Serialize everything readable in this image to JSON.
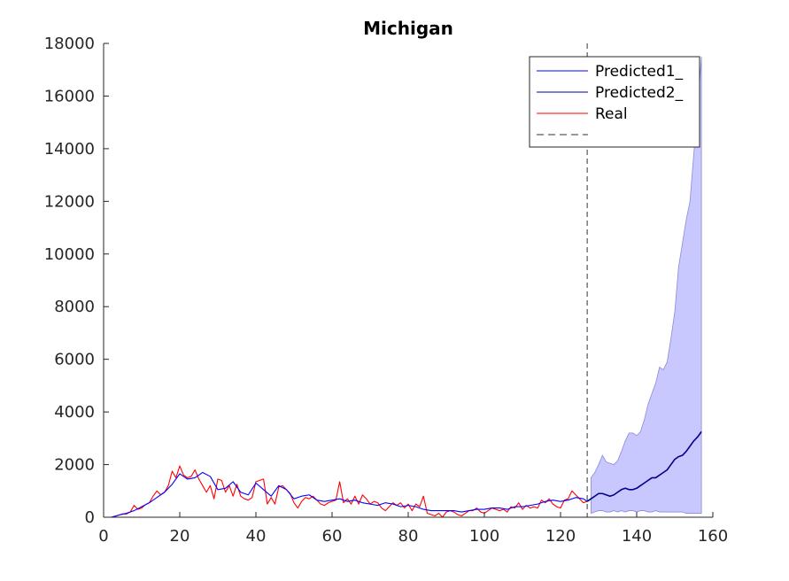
{
  "chart_data": {
    "type": "line",
    "title": "Michigan",
    "xlabel": "",
    "ylabel": "",
    "xlim": [
      0,
      160
    ],
    "ylim": [
      0,
      18000
    ],
    "xticks": [
      0,
      20,
      40,
      60,
      80,
      100,
      120,
      140,
      160
    ],
    "yticks": [
      0,
      2000,
      4000,
      6000,
      8000,
      10000,
      12000,
      14000,
      16000,
      18000
    ],
    "grid": false,
    "legend_position": "top-right",
    "legend": [
      "Predicted1_",
      "Predicted2_",
      "Real",
      ""
    ],
    "forecast_start_x": 127,
    "series": [
      {
        "name": "Real",
        "color": "#ff0000",
        "x": [
          2,
          3,
          4,
          5,
          6,
          7,
          8,
          9,
          10,
          11,
          12,
          13,
          14,
          15,
          16,
          17,
          18,
          19,
          20,
          21,
          22,
          23,
          24,
          25,
          26,
          27,
          28,
          29,
          30,
          31,
          32,
          33,
          34,
          35,
          36,
          37,
          38,
          39,
          40,
          41,
          42,
          43,
          44,
          45,
          46,
          47,
          48,
          49,
          50,
          51,
          52,
          53,
          54,
          55,
          56,
          57,
          58,
          59,
          60,
          61,
          62,
          63,
          64,
          65,
          66,
          67,
          68,
          69,
          70,
          71,
          72,
          73,
          74,
          75,
          76,
          77,
          78,
          79,
          80,
          81,
          82,
          83,
          84,
          85,
          86,
          87,
          88,
          89,
          90,
          91,
          92,
          93,
          94,
          95,
          96,
          97,
          98,
          99,
          100,
          101,
          102,
          103,
          104,
          105,
          106,
          107,
          108,
          109,
          110,
          111,
          112,
          113,
          114,
          115,
          116,
          117,
          118,
          119,
          120,
          121,
          122,
          123,
          124,
          125,
          126,
          127
        ],
        "y": [
          0,
          30,
          80,
          130,
          120,
          200,
          450,
          300,
          350,
          480,
          550,
          800,
          1000,
          850,
          950,
          1200,
          1750,
          1500,
          1950,
          1600,
          1500,
          1550,
          1800,
          1450,
          1200,
          950,
          1200,
          700,
          1450,
          1400,
          950,
          1200,
          800,
          1250,
          800,
          700,
          650,
          750,
          1350,
          1400,
          1450,
          500,
          750,
          500,
          1150,
          1200,
          1050,
          900,
          550,
          350,
          600,
          750,
          700,
          800,
          650,
          500,
          450,
          550,
          600,
          650,
          1350,
          550,
          700,
          500,
          800,
          500,
          850,
          700,
          500,
          600,
          550,
          350,
          250,
          400,
          550,
          450,
          550,
          350,
          500,
          250,
          500,
          400,
          800,
          150,
          100,
          50,
          150,
          0,
          200,
          250,
          200,
          100,
          50,
          150,
          250,
          250,
          350,
          200,
          150,
          250,
          350,
          300,
          250,
          300,
          200,
          400,
          350,
          550,
          300,
          450,
          350,
          400,
          350,
          650,
          550,
          700,
          500,
          400,
          350,
          650,
          700,
          1000,
          850,
          700,
          550,
          600
        ]
      },
      {
        "name": "Predicted1_",
        "color": "#0000ff",
        "x": [
          2,
          4,
          6,
          8,
          10,
          12,
          14,
          16,
          18,
          20,
          22,
          24,
          26,
          28,
          30,
          32,
          34,
          36,
          38,
          40,
          42,
          44,
          46,
          48,
          50,
          52,
          54,
          56,
          58,
          60,
          62,
          64,
          66,
          68,
          70,
          72,
          74,
          76,
          78,
          80,
          82,
          84,
          86,
          88,
          90,
          92,
          94,
          96,
          98,
          100,
          102,
          104,
          106,
          108,
          110,
          112,
          114,
          116,
          118,
          120,
          122,
          124,
          126,
          127
        ],
        "y": [
          0,
          80,
          150,
          250,
          400,
          550,
          750,
          950,
          1250,
          1650,
          1450,
          1500,
          1700,
          1550,
          1050,
          1100,
          1350,
          950,
          850,
          1300,
          1050,
          800,
          1200,
          1050,
          700,
          800,
          850,
          650,
          600,
          650,
          700,
          600,
          650,
          550,
          500,
          450,
          550,
          500,
          400,
          450,
          400,
          300,
          250,
          250,
          250,
          250,
          200,
          250,
          300,
          300,
          350,
          350,
          300,
          400,
          400,
          450,
          500,
          600,
          650,
          600,
          650,
          750,
          700,
          600
        ]
      },
      {
        "name": "Predicted2_",
        "color": "#00008b",
        "x": [
          127,
          128,
          129,
          130,
          131,
          132,
          133,
          134,
          135,
          136,
          137,
          138,
          139,
          140,
          141,
          142,
          143,
          144,
          145,
          146,
          147,
          148,
          149,
          150,
          151,
          152,
          153,
          154,
          155,
          156,
          157
        ],
        "y": [
          600,
          700,
          800,
          900,
          900,
          850,
          800,
          850,
          950,
          1050,
          1100,
          1050,
          1050,
          1100,
          1200,
          1300,
          1400,
          1500,
          1500,
          1600,
          1700,
          1800,
          2000,
          2200,
          2300,
          2350,
          2500,
          2700,
          2900,
          3050,
          3250
        ]
      }
    ],
    "band": {
      "name": "prediction interval",
      "color": "#c8c8ff",
      "x": [
        128,
        129,
        130,
        131,
        132,
        133,
        134,
        135,
        136,
        137,
        138,
        139,
        140,
        141,
        142,
        143,
        144,
        145,
        146,
        147,
        148,
        149,
        150,
        151,
        152,
        153,
        154,
        155,
        156,
        157
      ],
      "upper": [
        1500,
        1700,
        2000,
        2350,
        2100,
        2050,
        2000,
        2150,
        2500,
        2900,
        3200,
        3200,
        3100,
        3250,
        3700,
        4300,
        4700,
        5100,
        5700,
        5600,
        5900,
        6800,
        7800,
        9500,
        10400,
        11300,
        12000,
        13800,
        15500,
        17500
      ],
      "lower": [
        150,
        200,
        250,
        250,
        200,
        200,
        250,
        200,
        250,
        200,
        250,
        250,
        200,
        250,
        250,
        200,
        200,
        250,
        200,
        200,
        200,
        200,
        200,
        200,
        200,
        150,
        150,
        150,
        150,
        150
      ]
    }
  }
}
